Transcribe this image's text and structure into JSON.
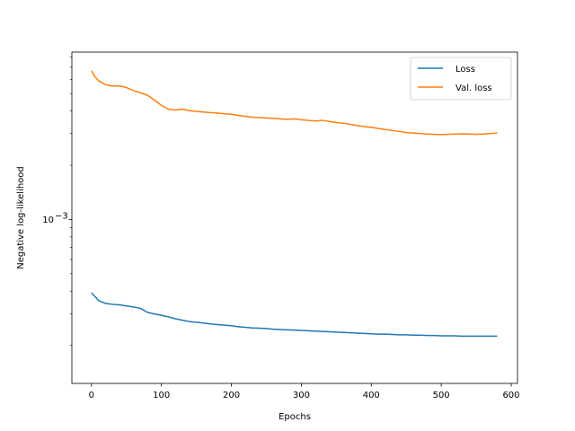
{
  "chart_data": {
    "type": "line",
    "xlabel": "Epochs",
    "ylabel": "Negative log-likelihood",
    "y_scale": "log",
    "xlim": [
      -28,
      609
    ],
    "ylim": [
      0.000123,
      0.0085
    ],
    "x_ticks": [
      0,
      100,
      200,
      300,
      400,
      500,
      600
    ],
    "y_ticks": [
      {
        "value": 0.001,
        "base": "10",
        "exp": "−3"
      }
    ],
    "legend_position": "upper right",
    "grid": false,
    "series": [
      {
        "name": "Loss",
        "color": "#1f77b4",
        "x": [
          0,
          10,
          20,
          30,
          40,
          50,
          60,
          70,
          80,
          90,
          100,
          110,
          120,
          130,
          140,
          150,
          160,
          170,
          180,
          190,
          200,
          210,
          220,
          230,
          240,
          250,
          260,
          270,
          280,
          290,
          300,
          310,
          320,
          330,
          340,
          350,
          360,
          370,
          380,
          390,
          400,
          410,
          420,
          430,
          440,
          450,
          460,
          470,
          480,
          490,
          500,
          510,
          520,
          530,
          540,
          550,
          560,
          570,
          580
        ],
        "y": [
          0.000392,
          0.000355,
          0.000342,
          0.000338,
          0.000336,
          0.000331,
          0.000327,
          0.000321,
          0.000305,
          0.000299,
          0.000294,
          0.000288,
          0.000281,
          0.000276,
          0.000271,
          0.000269,
          0.000266,
          0.000263,
          0.000261,
          0.000259,
          0.000257,
          0.000254,
          0.000252,
          0.00025,
          0.000249,
          0.000248,
          0.000246,
          0.000245,
          0.000244,
          0.000243,
          0.000242,
          0.000241,
          0.00024,
          0.000239,
          0.000238,
          0.000237,
          0.000236,
          0.000235,
          0.000234,
          0.000233,
          0.000232,
          0.000231,
          0.000231,
          0.00023,
          0.000229,
          0.000229,
          0.000228,
          0.000228,
          0.000227,
          0.000227,
          0.000226,
          0.000226,
          0.000226,
          0.000225,
          0.000225,
          0.000225,
          0.000225,
          0.000225,
          0.000225
        ]
      },
      {
        "name": "Val. loss",
        "color": "#ff7f0e",
        "x": [
          0,
          5,
          10,
          20,
          30,
          40,
          50,
          60,
          70,
          80,
          90,
          100,
          110,
          120,
          130,
          140,
          150,
          160,
          170,
          180,
          190,
          200,
          210,
          220,
          230,
          240,
          250,
          260,
          270,
          280,
          290,
          300,
          310,
          320,
          330,
          340,
          350,
          360,
          370,
          380,
          390,
          400,
          410,
          420,
          430,
          440,
          450,
          460,
          470,
          480,
          490,
          500,
          510,
          520,
          530,
          540,
          550,
          560,
          570,
          580
        ],
        "y": [
          0.0067,
          0.0062,
          0.0059,
          0.0056,
          0.0055,
          0.00552,
          0.0054,
          0.0052,
          0.00505,
          0.0049,
          0.0046,
          0.0043,
          0.0041,
          0.00405,
          0.0041,
          0.00402,
          0.00398,
          0.00395,
          0.00392,
          0.0039,
          0.00386,
          0.00384,
          0.00378,
          0.00374,
          0.0037,
          0.00368,
          0.00366,
          0.00364,
          0.00362,
          0.0036,
          0.00362,
          0.00358,
          0.00355,
          0.00352,
          0.00355,
          0.0035,
          0.00345,
          0.00342,
          0.00338,
          0.00332,
          0.00328,
          0.00325,
          0.0032,
          0.00316,
          0.00312,
          0.00308,
          0.00304,
          0.00302,
          0.003,
          0.00298,
          0.00297,
          0.00296,
          0.00297,
          0.00298,
          0.00299,
          0.00298,
          0.00297,
          0.00298,
          0.003,
          0.00302
        ]
      }
    ]
  }
}
